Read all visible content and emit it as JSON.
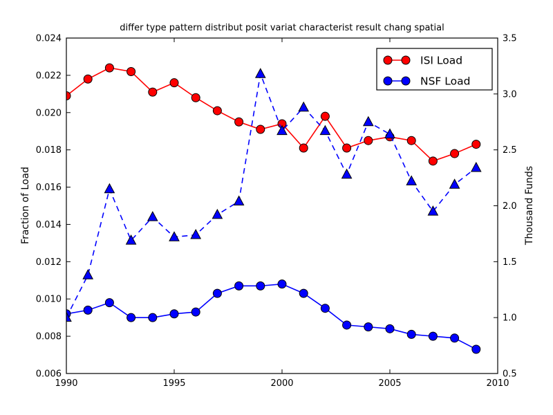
{
  "figure": {
    "background": "#ffffff",
    "frame_color": "#000000"
  },
  "chart_data": {
    "type": "line",
    "title": "differ type pattern distribut posit variat characterist result chang spatial",
    "x": [
      1990,
      1991,
      1992,
      1993,
      1994,
      1995,
      1996,
      1997,
      1998,
      1999,
      2000,
      2001,
      2002,
      2003,
      2004,
      2005,
      2006,
      2007,
      2008,
      2009
    ],
    "x_axis": {
      "min": 1990,
      "max": 2010,
      "tick_values": [
        1990,
        1995,
        2000,
        2005,
        2010
      ],
      "tick_labels": [
        "1990",
        "1995",
        "2000",
        "2005",
        "2010"
      ]
    },
    "left_axis": {
      "label": "Fraction of Load",
      "min": 0.006,
      "max": 0.024,
      "tick_values": [
        0.006,
        0.008,
        0.01,
        0.012,
        0.014,
        0.016,
        0.018,
        0.02,
        0.022,
        0.024
      ],
      "tick_labels": [
        "0.006",
        "0.008",
        "0.010",
        "0.012",
        "0.014",
        "0.016",
        "0.018",
        "0.020",
        "0.022",
        "0.024"
      ]
    },
    "right_axis": {
      "label": "Thousand Funds",
      "min": 0.5,
      "max": 3.5,
      "tick_values": [
        0.5,
        1.0,
        1.5,
        2.0,
        2.5,
        3.0,
        3.5
      ],
      "tick_labels": [
        "0.5",
        "1.0",
        "1.5",
        "2.0",
        "2.5",
        "3.0",
        "3.5"
      ]
    },
    "series": [
      {
        "name": "ISI Load",
        "axis": "left",
        "color": "#ff0000",
        "line": "solid",
        "marker": "circle",
        "in_legend": true,
        "values": [
          0.0209,
          0.0218,
          0.0224,
          0.0222,
          0.0211,
          0.0216,
          0.0208,
          0.0201,
          0.0195,
          0.0191,
          0.0194,
          0.0181,
          0.0198,
          0.0181,
          0.0185,
          0.0187,
          0.0185,
          0.0174,
          0.0178,
          0.0183
        ]
      },
      {
        "name": "NSF Load",
        "axis": "left",
        "color": "#0000ff",
        "line": "solid",
        "marker": "circle",
        "in_legend": true,
        "values": [
          0.0092,
          0.0094,
          0.0098,
          0.009,
          0.009,
          0.0092,
          0.0093,
          0.0103,
          0.0107,
          0.0107,
          0.0108,
          0.0103,
          0.0095,
          0.0086,
          0.0085,
          0.0084,
          0.0081,
          0.008,
          0.0079,
          0.0073
        ]
      },
      {
        "name": "Thousand Funds",
        "axis": "right",
        "color": "#0000ff",
        "line": "dashed",
        "marker": "triangle",
        "in_legend": false,
        "values": [
          1.0,
          1.38,
          2.15,
          1.69,
          1.9,
          1.72,
          1.74,
          1.92,
          2.04,
          3.18,
          2.67,
          2.88,
          2.67,
          2.28,
          2.75,
          2.64,
          2.22,
          1.95,
          2.19,
          2.34
        ]
      }
    ],
    "legend": {
      "position": "upper-right",
      "entries": [
        "ISI Load",
        "NSF Load"
      ]
    },
    "grid": false
  }
}
